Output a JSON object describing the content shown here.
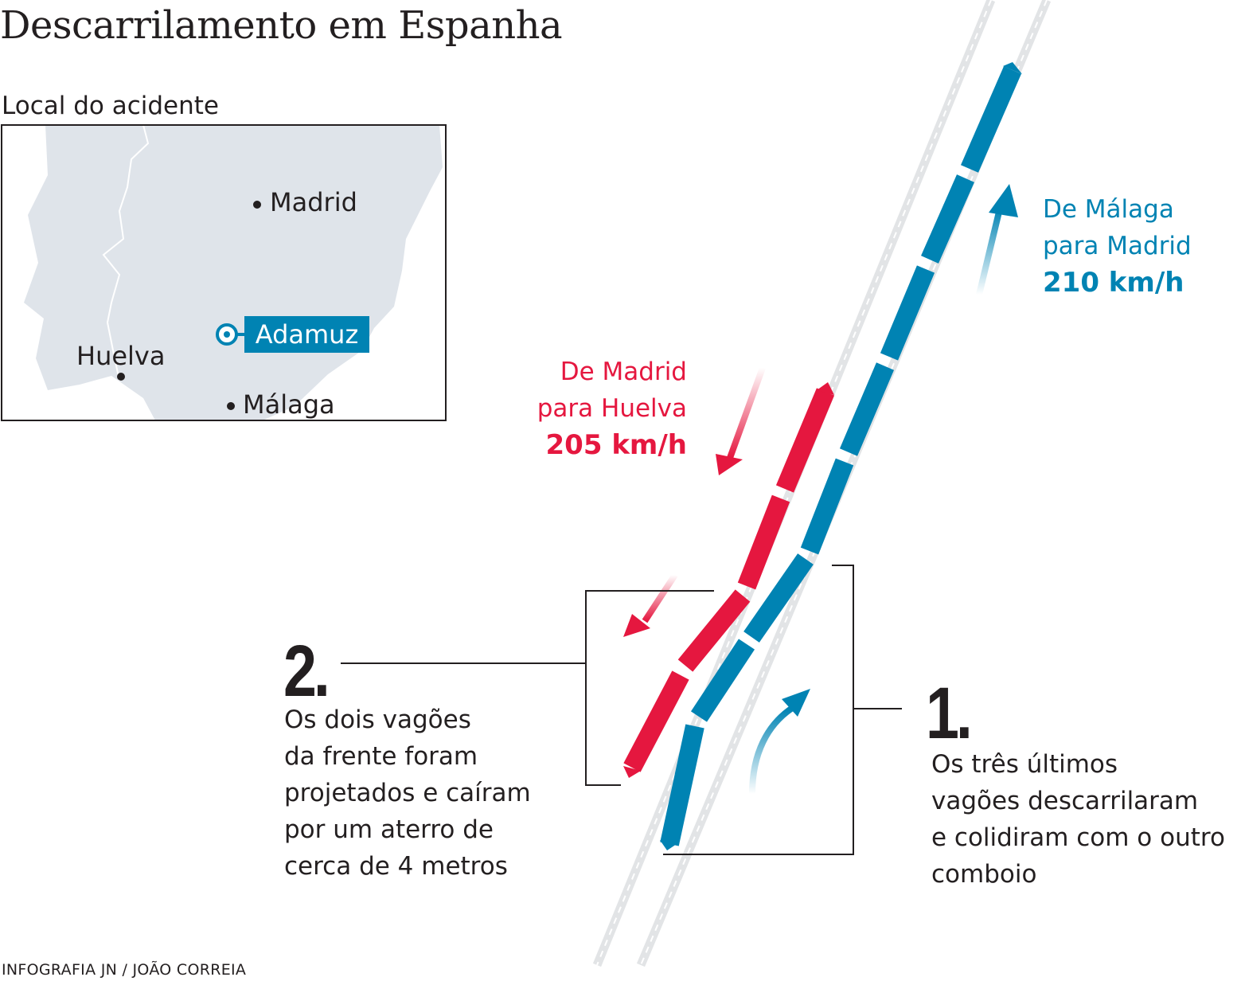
{
  "title": "Descarrilamento em Espanha",
  "map": {
    "subtitle": "Local do acidente",
    "cities": {
      "madrid": "Madrid",
      "huelva": "Huelva",
      "malaga": "Málaga"
    },
    "accident_site": "Adamuz"
  },
  "trains": {
    "madrid_huelva": {
      "line1": "De Madrid",
      "line2": "para Huelva",
      "speed": "205 km/h",
      "color": "#e5173f"
    },
    "malaga_madrid": {
      "line1": "De Málaga",
      "line2": "para Madrid",
      "speed": "210 km/h",
      "color": "#0083b3"
    }
  },
  "callouts": {
    "one": {
      "number": "1.",
      "lines": [
        "Os três últimos",
        "vagões descarrilaram",
        "e colidiram com o outro",
        "comboio"
      ]
    },
    "two": {
      "number": "2.",
      "lines": [
        "Os dois vagões",
        "da frente foram",
        "projetados e caíram",
        "por um aterro de",
        "cerca de 4 metros"
      ]
    }
  },
  "credit": "INFOGRAFIA JN / JOÃO CORREIA",
  "colors": {
    "red": "#e5173f",
    "blue": "#0083b3",
    "land": "#dfe4ea",
    "text": "#231f20"
  }
}
